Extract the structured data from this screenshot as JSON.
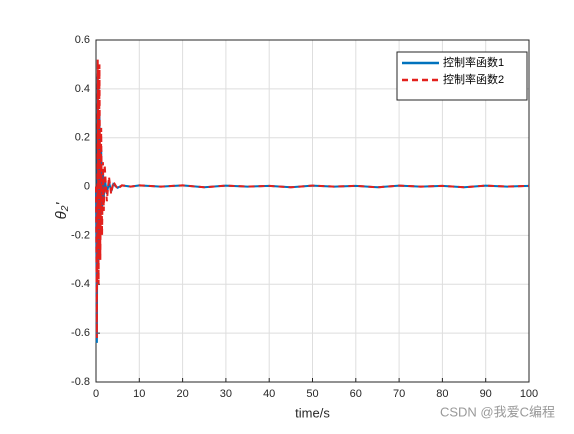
{
  "chart_data": {
    "type": "line",
    "x_label": "time/s",
    "y_label": "θ₂'",
    "x": [
      0,
      0.2,
      0.4,
      0.6,
      0.8,
      1,
      1.2,
      1.4,
      1.6,
      1.8,
      2,
      2.5,
      3,
      3.5,
      4,
      5,
      6,
      8,
      10,
      15,
      20,
      25,
      30,
      35,
      40,
      45,
      50,
      55,
      60,
      65,
      70,
      75,
      80,
      85,
      90,
      95,
      100
    ],
    "series": [
      {
        "name": "控制率函数1",
        "color": "#0072bd",
        "line_style": "solid",
        "values": [
          0,
          -0.64,
          0.45,
          -0.3,
          0.3,
          -0.2,
          0.15,
          -0.1,
          0.06,
          -0.05,
          0.04,
          -0.03,
          0.02,
          -0.02,
          0.01,
          -0.005,
          0.005,
          0,
          0.005,
          0,
          0.005,
          -0.003,
          0.004,
          0,
          0.003,
          -0.003,
          0.004,
          0,
          0.003,
          -0.003,
          0.004,
          0,
          0.003,
          -0.003,
          0.004,
          0,
          0.003
        ]
      },
      {
        "name": "控制率函数2",
        "color": "#e3201c",
        "line_style": "dashed",
        "values": [
          0,
          -0.62,
          0.52,
          -0.4,
          0.5,
          -0.3,
          0.24,
          -0.2,
          0.1,
          -0.1,
          0.09,
          -0.06,
          0.04,
          -0.03,
          0.02,
          -0.01,
          0.005,
          0,
          0.005,
          0,
          0.005,
          -0.003,
          0.004,
          0,
          0.003,
          -0.003,
          0.004,
          0,
          0.003,
          -0.003,
          0.004,
          0,
          0.003,
          -0.003,
          0.004,
          0,
          0.003
        ]
      }
    ],
    "xlim": [
      0,
      100
    ],
    "xticks": [
      0,
      10,
      20,
      30,
      40,
      50,
      60,
      70,
      80,
      90,
      100
    ],
    "ylim": [
      -0.8,
      0.6
    ],
    "yticks": [
      -0.8,
      -0.6,
      -0.4,
      -0.2,
      0,
      0.2,
      0.4,
      0.6
    ],
    "grid": true,
    "legend": "top-right",
    "watermark": "CSDN @我爱C编程"
  }
}
